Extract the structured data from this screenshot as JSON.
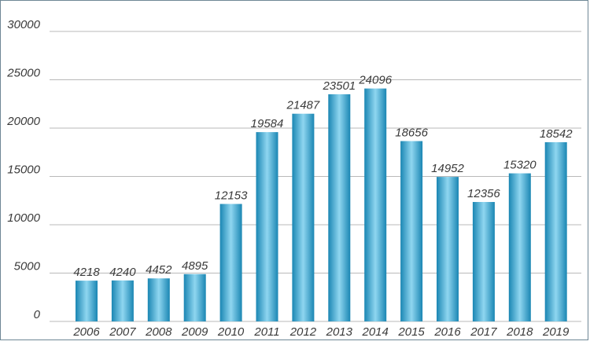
{
  "chart_data": {
    "type": "bar",
    "categories": [
      "2006",
      "2007",
      "2008",
      "2009",
      "2010",
      "2011",
      "2012",
      "2013",
      "2014",
      "2015",
      "2016",
      "2017",
      "2018",
      "2019"
    ],
    "values": [
      4218,
      4240,
      4452,
      4895,
      12153,
      19584,
      21487,
      23501,
      24096,
      18656,
      14952,
      12356,
      15320,
      18542
    ],
    "data_labels": [
      "4218",
      "4240",
      "4452",
      "4895",
      "12153",
      "19584",
      "21487",
      "23501",
      "24096",
      "18656",
      "14952",
      "12356",
      "15320",
      "18542"
    ],
    "y_ticks": [
      "0",
      "5000",
      "10000",
      "15000",
      "20000",
      "25000",
      "30000"
    ],
    "ylim": [
      0,
      30000
    ],
    "title": "",
    "xlabel": "",
    "ylabel": "",
    "grid": true,
    "legend": "none",
    "colors": {
      "bar_edge": "#1a86b3",
      "bar_center": "#8fd6f0",
      "grid": "#b9b9b9",
      "text": "#3a3a3a",
      "frame": "#6e8795"
    }
  }
}
